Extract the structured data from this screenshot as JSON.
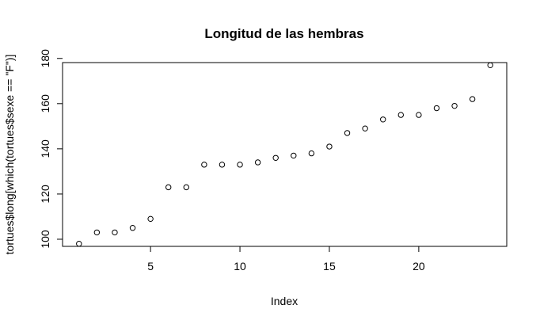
{
  "chart_data": {
    "type": "scatter",
    "title": "Longitud de las hembras",
    "xlabel": "Index",
    "ylabel": "tortues$long[which(tortues$sexe == \"F\")]",
    "x": [
      1,
      2,
      3,
      4,
      5,
      6,
      7,
      8,
      9,
      10,
      11,
      12,
      13,
      14,
      15,
      16,
      17,
      18,
      19,
      20,
      21,
      22,
      23,
      24
    ],
    "y": [
      98,
      103,
      103,
      105,
      109,
      123,
      123,
      133,
      133,
      133,
      134,
      136,
      137,
      138,
      141,
      147,
      149,
      153,
      155,
      155,
      158,
      159,
      162,
      177
    ],
    "xlim": [
      0.08,
      24.92
    ],
    "ylim": [
      96.84,
      178.16
    ],
    "xticks": [
      5,
      10,
      15,
      20
    ],
    "xtick_labels": [
      "5",
      "10",
      "15",
      "20"
    ],
    "yticks": [
      100,
      120,
      140,
      160,
      180
    ],
    "ytick_labels": [
      "100",
      "120",
      "140",
      "160",
      "180"
    ],
    "marker": "open-circle",
    "grid": false,
    "legend": "none",
    "colors": {
      "point": "#000000",
      "axis": "#000000",
      "background": "#ffffff"
    }
  }
}
